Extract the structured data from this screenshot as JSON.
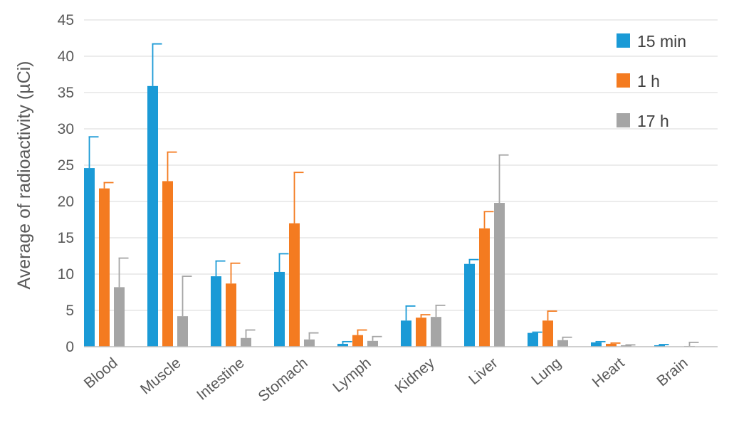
{
  "chart_data": {
    "type": "bar",
    "title": "",
    "xlabel": "",
    "ylabel": "Average of radioactivity (µCi)",
    "ylim": [
      0,
      45
    ],
    "yticks": [
      0,
      5,
      10,
      15,
      20,
      25,
      30,
      35,
      40,
      45
    ],
    "grid": true,
    "legend_position": "top-right",
    "categories": [
      "Blood",
      "Muscle",
      "Intestine",
      "Stomach",
      "Lymph",
      "Kidney",
      "Liver",
      "Lung",
      "Heart",
      "Brain"
    ],
    "series": [
      {
        "name": "15 min",
        "color": "#1a9ad6",
        "values": [
          24.6,
          35.9,
          9.7,
          10.3,
          0.4,
          3.6,
          11.4,
          1.9,
          0.6,
          0.2
        ],
        "errors": [
          4.3,
          5.8,
          2.1,
          2.5,
          0.3,
          2.0,
          0.6,
          0.1,
          0.1,
          0.1
        ]
      },
      {
        "name": "1 h",
        "color": "#f47b20",
        "values": [
          21.8,
          22.8,
          8.7,
          17.0,
          1.6,
          4.0,
          16.3,
          3.6,
          0.4,
          0.0
        ],
        "errors": [
          0.8,
          4.0,
          2.8,
          7.0,
          0.7,
          0.4,
          2.3,
          1.3,
          0.1,
          0.0
        ]
      },
      {
        "name": "17 h",
        "color": "#a5a5a5",
        "values": [
          8.2,
          4.2,
          1.2,
          1.0,
          0.8,
          4.1,
          19.8,
          0.9,
          0.2,
          0.1
        ],
        "errors": [
          4.0,
          5.5,
          1.1,
          0.9,
          0.6,
          1.6,
          6.6,
          0.4,
          0.05,
          0.5
        ]
      }
    ]
  }
}
